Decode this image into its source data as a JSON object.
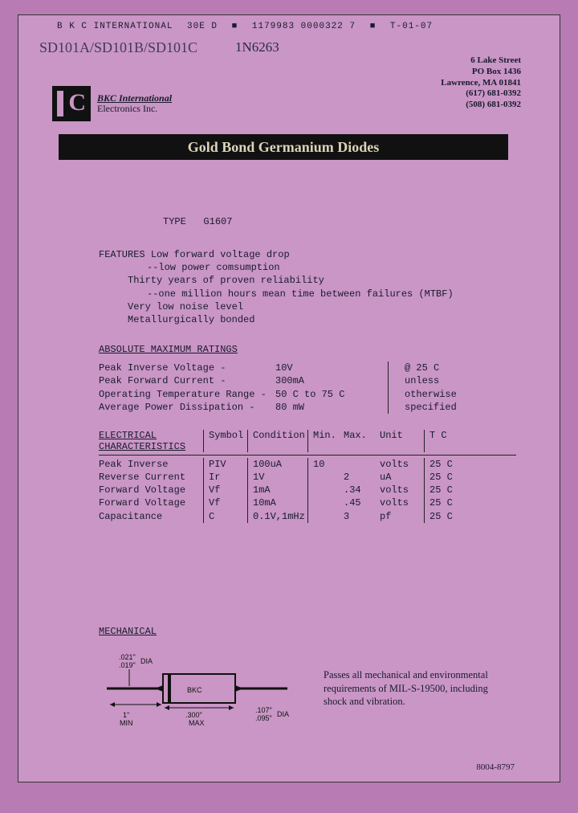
{
  "scantop": {
    "company": "B K C  INTERNATIONAL",
    "code1": "30E D",
    "code2": "1179983 0000322 7",
    "code3": "T-01-07"
  },
  "handwriting": {
    "line1": "SD101A/SD101B/SD101C",
    "line2": "1N6263"
  },
  "address": {
    "l1": "6 Lake Street",
    "l2": "PO Box 1436",
    "l3": "Lawrence, MA 01841",
    "l4": "(617) 681-0392",
    "l5": "(508) 681-0392"
  },
  "logo": {
    "l1": "BKC International",
    "l2": "Electronics Inc."
  },
  "titlebar": "Gold Bond Germanium Diodes",
  "type_label": "TYPE",
  "type_value": "G1607",
  "features": {
    "header": "FEATURES",
    "f1a": "Low forward voltage drop",
    "f1b": "--low power comsumption",
    "f2a": "Thirty years of proven reliability",
    "f2b": "--one million hours mean time between failures (MTBF)",
    "f3": "Very low noise level",
    "f4": "Metallurgically bonded"
  },
  "amr": {
    "header": "ABSOLUTE MAXIMUM RATINGS",
    "rows": [
      {
        "label": "Peak Inverse Voltage -",
        "value": "10V"
      },
      {
        "label": "Peak Forward Current -",
        "value": "300mA"
      },
      {
        "label": "Operating Temperature Range -",
        "value": "50 C to 75 C"
      },
      {
        "label": "Average Power Dissipation -",
        "value": "80 mW"
      }
    ],
    "cond1": "@ 25 C",
    "cond2": "unless",
    "cond3": "otherwise",
    "cond4": "specified"
  },
  "elec": {
    "header_l1": "ELECTRICAL",
    "header_l2": "CHARACTERISTICS",
    "cols": {
      "sym": "Symbol",
      "cond": "Condition",
      "min": "Min.",
      "max": "Max.",
      "unit": "Unit",
      "tc": "T C"
    },
    "rows": [
      {
        "label": "Peak Inverse",
        "sym": "PIV",
        "cond": "100uA",
        "min": "10",
        "max": "",
        "unit": "volts",
        "tc": "25 C"
      },
      {
        "label": "Reverse Current",
        "sym": "Ir",
        "cond": "1V",
        "min": "",
        "max": "2",
        "unit": "uA",
        "tc": "25 C"
      },
      {
        "label": "Forward Voltage",
        "sym": "Vf",
        "cond": "1mA",
        "min": "",
        "max": ".34",
        "unit": "volts",
        "tc": "25 C"
      },
      {
        "label": "Forward Voltage",
        "sym": "Vf",
        "cond": "10mA",
        "min": "",
        "max": ".45",
        "unit": "volts",
        "tc": "25 C"
      },
      {
        "label": "Capacitance",
        "sym": "C",
        "cond": "0.1V,1mHz",
        "min": "",
        "max": "3",
        "unit": "pf",
        "tc": "25 C"
      }
    ]
  },
  "mech": {
    "header": "MECHANICAL",
    "body_label": "BKC",
    "dims": {
      "d1": ".021\"",
      "d1b": ".019\"",
      "dia": "DIA",
      "len_min": "1\"",
      "min": "MIN",
      "len_max": ".300\"",
      "max": "MAX",
      "d2": ".107\"",
      "d2b": ".095\""
    },
    "text": "Passes all mechanical and environmental requirements of MIL-S-19500, including shock and vibration."
  },
  "footer": "8004-8797",
  "colors": {
    "page_bg": "#c996c5",
    "outer_bg": "#b87bb3",
    "ink": "#1a1a2e",
    "bar_bg": "#111111",
    "bar_fg": "#ddd3b8"
  }
}
